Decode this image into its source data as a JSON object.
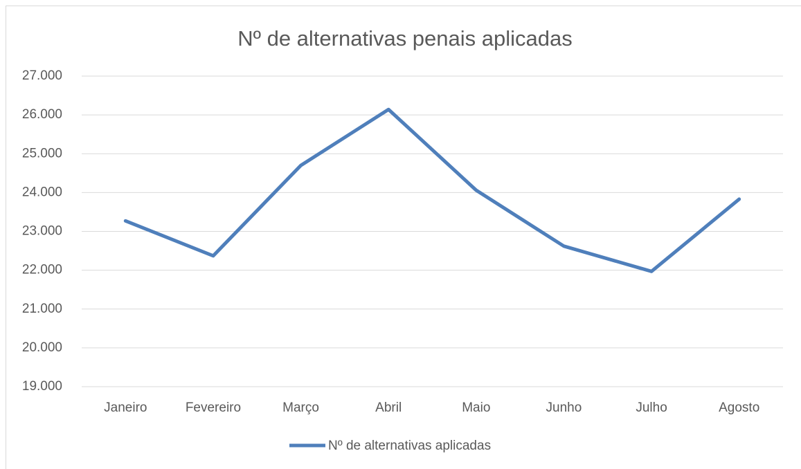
{
  "chart_data": {
    "type": "line",
    "title": "Nº de alternativas penais aplicadas",
    "categories": [
      "Janeiro",
      "Fevereiro",
      "Março",
      "Abril",
      "Maio",
      "Junho",
      "Julho",
      "Agosto"
    ],
    "series": [
      {
        "name": "Nº de alternativas aplicadas",
        "color": "#4f7fbb",
        "values": [
          23270,
          22370,
          24700,
          26140,
          24060,
          22620,
          21970,
          23830
        ]
      }
    ],
    "ylim": [
      19000,
      27000
    ],
    "yticks": [
      {
        "value": 19000,
        "label": "19.000"
      },
      {
        "value": 20000,
        "label": "20.000"
      },
      {
        "value": 21000,
        "label": "21.000"
      },
      {
        "value": 22000,
        "label": "22.000"
      },
      {
        "value": 23000,
        "label": "23.000"
      },
      {
        "value": 24000,
        "label": "24.000"
      },
      {
        "value": 25000,
        "label": "25.000"
      },
      {
        "value": 26000,
        "label": "26.000"
      },
      {
        "value": 27000,
        "label": "27.000"
      }
    ],
    "grid": true,
    "legend": "bottom"
  }
}
